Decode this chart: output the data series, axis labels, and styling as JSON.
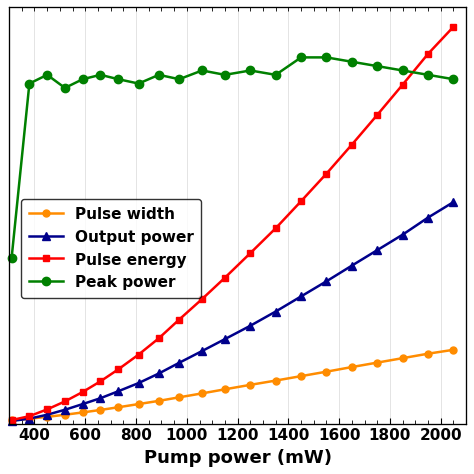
{
  "pump_power": [
    310,
    380,
    450,
    520,
    590,
    660,
    730,
    810,
    890,
    970,
    1060,
    1150,
    1250,
    1350,
    1450,
    1550,
    1650,
    1750,
    1850,
    1950,
    2050
  ],
  "pulse_width_norm": [
    0.02,
    0.028,
    0.038,
    0.05,
    0.063,
    0.077,
    0.092,
    0.11,
    0.128,
    0.148,
    0.17,
    0.193,
    0.218,
    0.242,
    0.267,
    0.292,
    0.318,
    0.343,
    0.368,
    0.393,
    0.415
  ],
  "output_power_norm": [
    0.015,
    0.028,
    0.05,
    0.078,
    0.11,
    0.143,
    0.182,
    0.228,
    0.282,
    0.342,
    0.408,
    0.475,
    0.55,
    0.63,
    0.715,
    0.8,
    0.888,
    0.975,
    1.062,
    1.158,
    1.245
  ],
  "pulse_energy_norm": [
    0.02,
    0.042,
    0.08,
    0.125,
    0.178,
    0.238,
    0.305,
    0.388,
    0.48,
    0.585,
    0.7,
    0.82,
    0.958,
    1.098,
    1.25,
    1.405,
    1.568,
    1.735,
    1.905,
    2.078,
    2.23
  ],
  "peak_power_norm": [
    0.38,
    0.78,
    0.8,
    0.77,
    0.79,
    0.8,
    0.79,
    0.78,
    0.8,
    0.79,
    0.81,
    0.8,
    0.81,
    0.8,
    0.84,
    0.84,
    0.83,
    0.82,
    0.81,
    0.8,
    0.79
  ],
  "peak_power_scale": 2.45,
  "xlabel": "Pump power (mW)",
  "xlim": [
    300,
    2100
  ],
  "ylim": [
    0,
    1.05
  ],
  "xticks": [
    400,
    600,
    800,
    1000,
    1200,
    1400,
    1600,
    1800,
    2000
  ],
  "colors": {
    "pulse_width": "#FF8C00",
    "output_power": "#00008B",
    "pulse_energy": "#FF0000",
    "peak_power": "#008000"
  },
  "legend_labels": [
    "Pulse width",
    "Output power",
    "Pulse energy",
    "Peak power"
  ],
  "bg_color": "#ffffff"
}
